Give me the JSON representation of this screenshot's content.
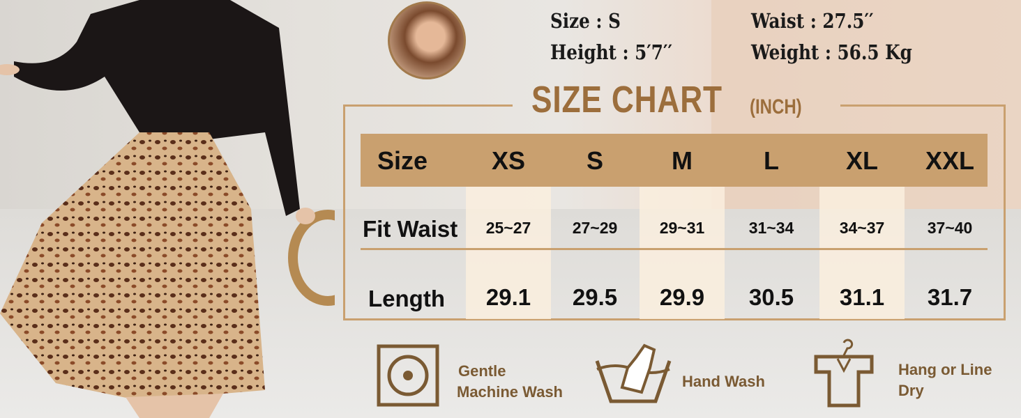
{
  "model": {
    "size": "Size : S",
    "height": "Height : 5′7′′",
    "waist": "Waist : 27.5′′",
    "weight": "Weight : 56.5 Kg"
  },
  "chart": {
    "title": "SIZE CHART",
    "unit": "(INCH)",
    "header_label": "Size",
    "sizes": [
      "XS",
      "S",
      "M",
      "L",
      "XL",
      "XXL"
    ],
    "rows": [
      {
        "label": "Fit Waist",
        "values": [
          "25~27",
          "27~29",
          "29~31",
          "31~34",
          "34~37",
          "37~40"
        ]
      },
      {
        "label": "Length",
        "values": [
          "29.1",
          "29.5",
          "29.9",
          "30.5",
          "31.1",
          "31.7"
        ]
      }
    ]
  },
  "care": [
    {
      "icon": "gentle-machine-wash-icon",
      "line1": "Gentle",
      "line2": "Machine Wash"
    },
    {
      "icon": "hand-wash-icon",
      "line1": "Hand Wash",
      "line2": ""
    },
    {
      "icon": "hang-dry-icon",
      "line1": "Hang or Line",
      "line2": "Dry"
    }
  ],
  "colors": {
    "accent": "#c9a06f",
    "icon": "#7a5a33",
    "title": "#9c6e3c"
  }
}
